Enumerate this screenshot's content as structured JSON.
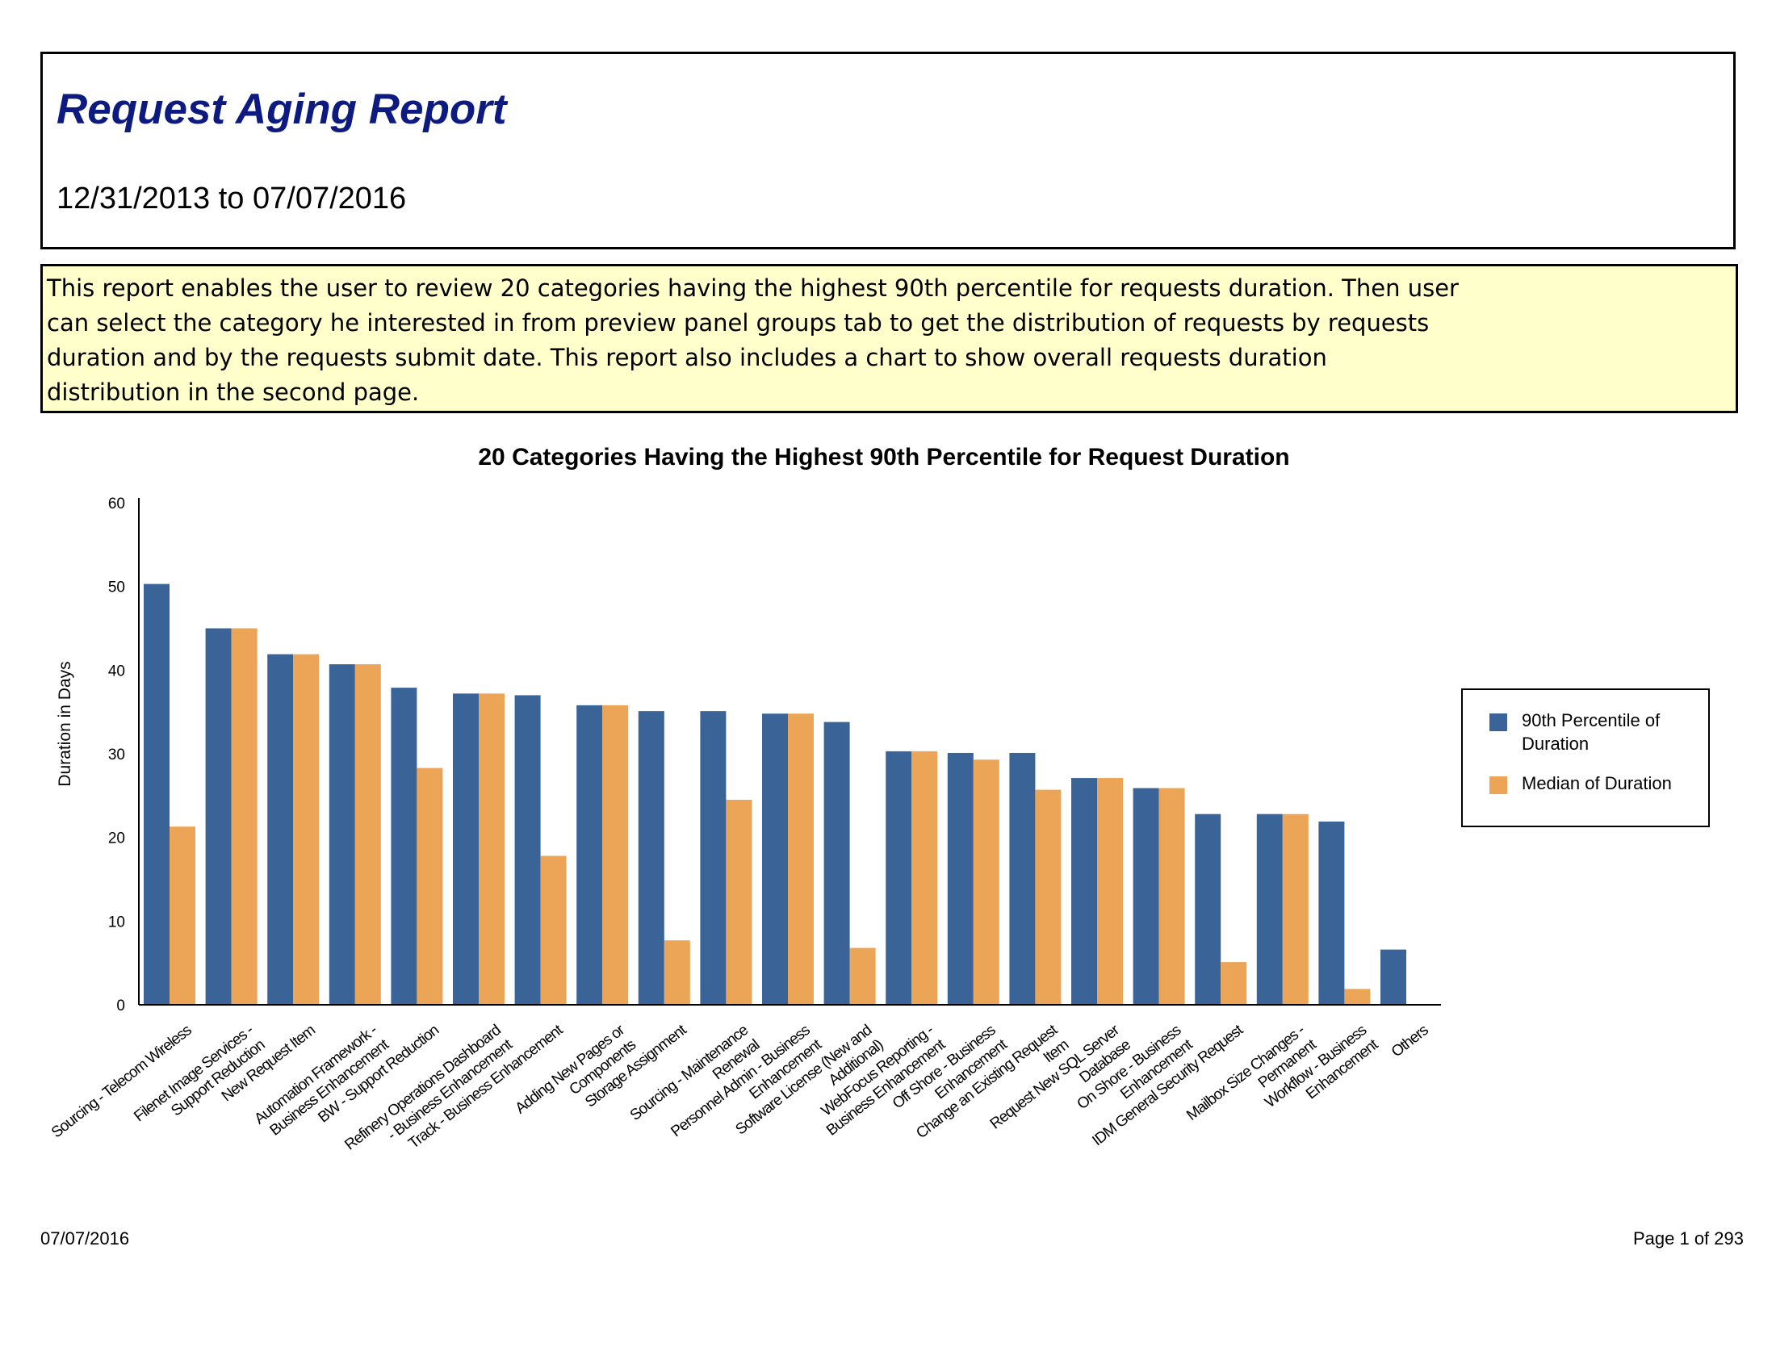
{
  "header": {
    "title": "Request Aging Report",
    "date_range": "12/31/2013 to 07/07/2016"
  },
  "description": "This report enables the user to review 20 categories having the highest 90th percentile for requests duration. Then user can select the category he interested in from preview panel groups tab to get the distribution of requests by requests duration and by the requests submit date. This report also includes a chart to show overall requests duration distribution in the second page.",
  "chart_data": {
    "type": "bar",
    "title": "20 Categories Having the Highest 90th Percentile for Request Duration",
    "xlabel": "",
    "ylabel": "Duration in Days",
    "ylim": [
      0,
      60
    ],
    "yticks": [
      0,
      10,
      20,
      30,
      40,
      50,
      60
    ],
    "grid": false,
    "legend_position": "right",
    "categories": [
      [
        "Sourcing - Telecom Wireless"
      ],
      [
        "Filenet Image Services -",
        "Support Reduction"
      ],
      [
        "New Request Item"
      ],
      [
        "Automation Framework -",
        "Business Enhancement"
      ],
      [
        "BW - Support Reduction"
      ],
      [
        "Refinery Operations Dashboard",
        "- Business Enhancement"
      ],
      [
        "Track - Business Enhancement"
      ],
      [
        "Adding New Pages or",
        "Components"
      ],
      [
        "Storage Assignment"
      ],
      [
        "Sourcing - Maintenance",
        "Renewal"
      ],
      [
        "Personnel Admin - Business",
        "Enhancement"
      ],
      [
        "Software License (New and",
        "Additional)"
      ],
      [
        "WebFocus Reporting -",
        "Business Enhancement"
      ],
      [
        "Off Shore - Business",
        "Enhancement"
      ],
      [
        "Change an Existing Request",
        "Item"
      ],
      [
        "Request New SQL Server",
        "Database"
      ],
      [
        "On Shore - Business",
        "Enhancement"
      ],
      [
        "IDM General Security Request"
      ],
      [
        "Mailbox Size Changes -",
        "Permanent"
      ],
      [
        "Workflow - Business",
        "Enhancement"
      ],
      [
        "Others"
      ]
    ],
    "series": [
      {
        "name": "90th Percentile of Duration",
        "color": "#3a6497",
        "values": [
          50.3,
          45,
          41.9,
          40.7,
          37.9,
          37.2,
          37,
          35.8,
          35.1,
          35.1,
          34.8,
          33.8,
          30.3,
          30.1,
          30.1,
          27.1,
          25.9,
          22.8,
          22.8,
          21.9,
          6.6
        ]
      },
      {
        "name": "Median of Duration",
        "color": "#eca456",
        "values": [
          21.3,
          45,
          41.9,
          40.7,
          28.3,
          37.2,
          17.8,
          35.8,
          7.7,
          24.5,
          34.8,
          6.8,
          30.3,
          29.3,
          25.7,
          27.1,
          25.9,
          5.1,
          22.8,
          1.9,
          null
        ]
      }
    ]
  },
  "footer": {
    "date": "07/07/2016",
    "page": "Page 1 of 293"
  }
}
